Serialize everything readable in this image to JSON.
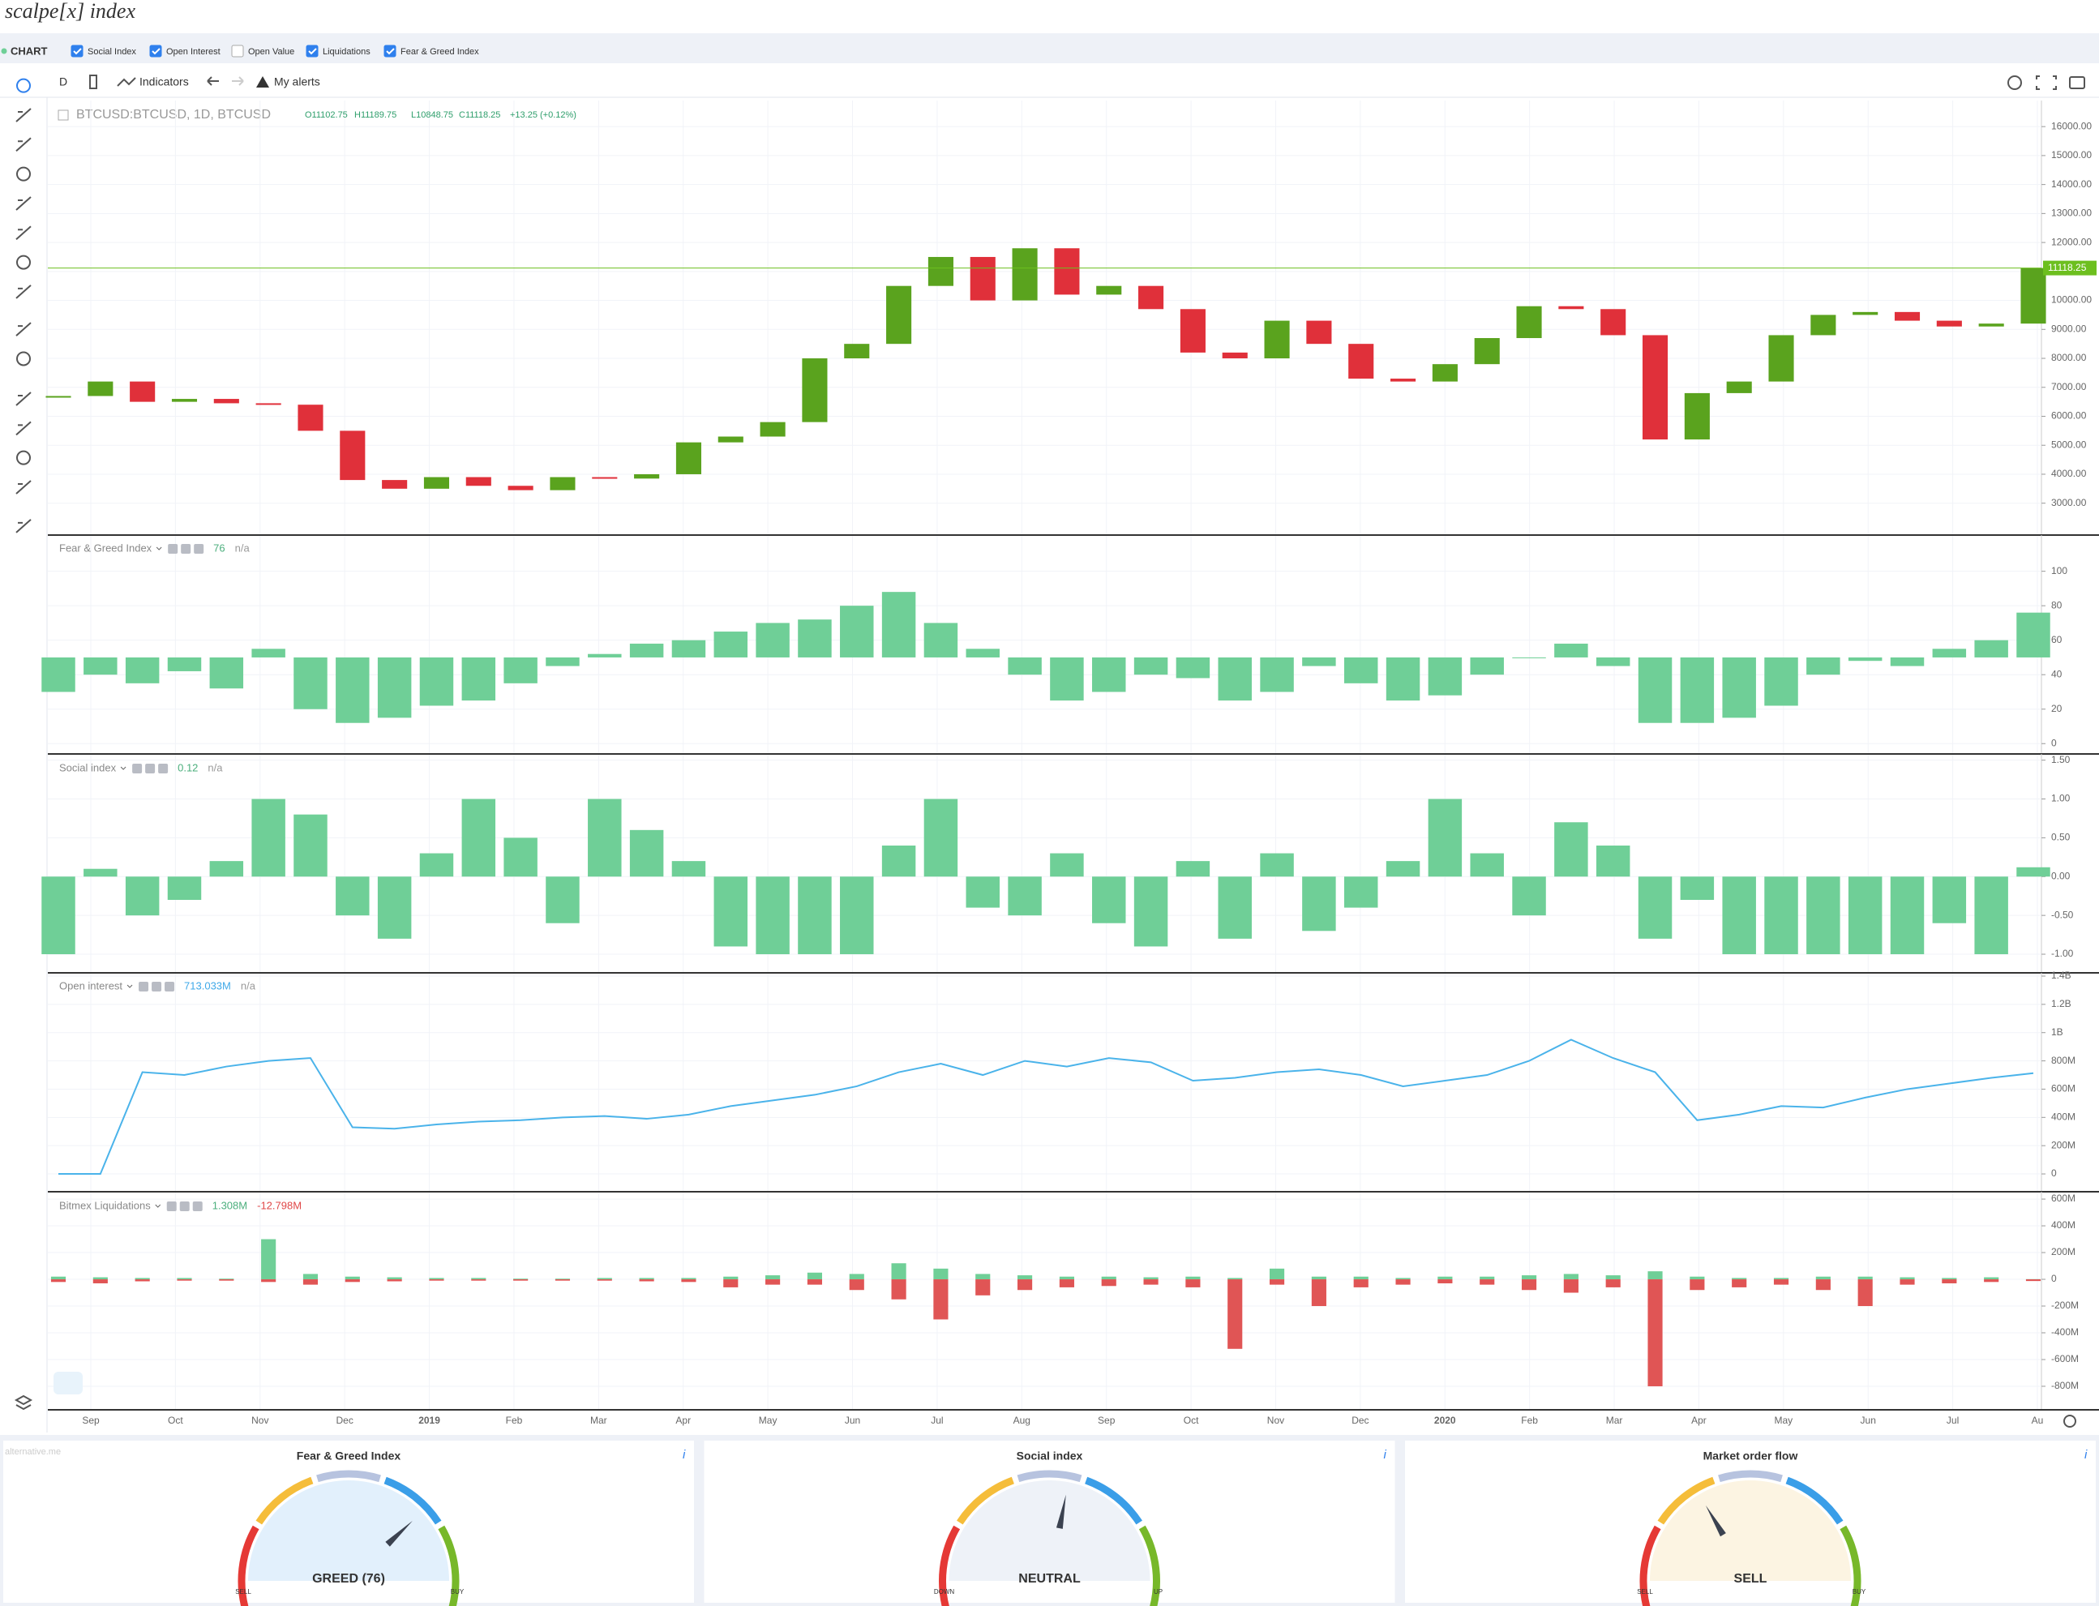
{
  "header": {
    "logo": "scalpe[x] index"
  },
  "filters": {
    "title": "CHART",
    "items": [
      {
        "label": "Social Index",
        "checked": true
      },
      {
        "label": "Open Interest",
        "checked": true
      },
      {
        "label": "Open Value",
        "checked": false
      },
      {
        "label": "Liquidations",
        "checked": true
      },
      {
        "label": "Fear & Greed Index",
        "checked": true
      }
    ]
  },
  "toolbar": {
    "interval": "D",
    "indicators": "Indicators",
    "alerts": "My alerts"
  },
  "chart_data": [
    {
      "type": "candle",
      "title": "BTCUSD:BTCUSD, 1D, BTCUSD",
      "quote": [
        "O11102.75",
        "H11189.75",
        "L10848.75",
        "C11118.25",
        "+13.25 (+0.12%)"
      ],
      "up_color": "#5aa31e",
      "down_color": "#e0303a",
      "last_price": 11118.25,
      "last_color": "#6dbf1f",
      "values": [
        6700,
        7200,
        6500,
        6600,
        6450,
        6400,
        5500,
        3800,
        3500,
        3900,
        3600,
        3450,
        3900,
        3850,
        4000,
        5100,
        5300,
        5800,
        8000,
        8500,
        10500,
        11500,
        10000,
        11800,
        10200,
        10500,
        9700,
        8200,
        8000,
        9300,
        8500,
        7300,
        7200,
        7800,
        8700,
        9800,
        9700,
        8800,
        5200,
        6800,
        7200,
        8800,
        9500,
        9600,
        9300,
        9100,
        9200,
        11118.25
      ],
      "ylim": [
        1900,
        16900
      ],
      "yticks": [
        {
          "value": 3000,
          "label": "3000.00"
        },
        {
          "value": 4000,
          "label": "4000.00"
        },
        {
          "value": 5000,
          "label": "5000.00"
        },
        {
          "value": 6000,
          "label": "6000.00"
        },
        {
          "value": 7000,
          "label": "7000.00"
        },
        {
          "value": 8000,
          "label": "8000.00"
        },
        {
          "value": 9000,
          "label": "9000.00"
        },
        {
          "value": 10000,
          "label": "10000.00"
        },
        {
          "value": 11000,
          "label": "11000.00"
        },
        {
          "value": 12000,
          "label": "12000.00"
        },
        {
          "value": 13000,
          "label": "13000.00"
        },
        {
          "value": 14000,
          "label": "14000.00"
        },
        {
          "value": 15000,
          "label": "15000.00"
        },
        {
          "value": 16000,
          "label": "16000.00"
        }
      ],
      "grid": true
    },
    {
      "type": "bar",
      "title": "Fear & Greed Index",
      "legend": [
        "76",
        "n/a"
      ],
      "legend_colors": [
        "#4caf7d",
        "#999"
      ],
      "color": "#6fcf97",
      "baseline": 50,
      "values": [
        30,
        40,
        35,
        42,
        32,
        55,
        20,
        12,
        15,
        22,
        25,
        35,
        45,
        52,
        58,
        60,
        65,
        70,
        72,
        80,
        88,
        70,
        55,
        40,
        25,
        30,
        40,
        38,
        25,
        30,
        45,
        35,
        25,
        28,
        40,
        50,
        58,
        45,
        12,
        12,
        15,
        22,
        40,
        48,
        45,
        55,
        60,
        76
      ],
      "ylim": [
        -6,
        121
      ],
      "yticks": [
        0,
        20,
        40,
        60,
        80,
        100
      ],
      "grid": true
    },
    {
      "type": "bar",
      "title": "Social index",
      "legend": [
        "0.12",
        "n/a"
      ],
      "legend_colors": [
        "#4caf7d",
        "#999"
      ],
      "color": "#6fcf97",
      "baseline": 0,
      "values": [
        -1,
        0.1,
        -0.5,
        -0.3,
        0.2,
        1,
        0.8,
        -0.5,
        -0.8,
        0.3,
        1,
        0.5,
        -0.6,
        1,
        0.6,
        0.2,
        -0.9,
        -1,
        -1,
        -1,
        0.4,
        1,
        -0.4,
        -0.5,
        0.3,
        -0.6,
        -0.9,
        0.2,
        -0.8,
        0.3,
        -0.7,
        -0.4,
        0.2,
        1,
        0.3,
        -0.5,
        0.7,
        0.4,
        -0.8,
        -0.3,
        -1,
        -1,
        -1,
        -1,
        -1,
        -0.6,
        -1,
        0.12
      ],
      "ylim": [
        -1.24,
        1.58
      ],
      "yticks": [
        {
          "value": -1,
          "label": "-1.00"
        },
        {
          "value": -0.5,
          "label": "-0.50"
        },
        {
          "value": 0,
          "label": "0.00"
        },
        {
          "value": 0.5,
          "label": "0.50"
        },
        {
          "value": 1,
          "label": "1.00"
        },
        {
          "value": 1.5,
          "label": "1.50"
        }
      ],
      "grid": true
    },
    {
      "type": "line",
      "title": "Open interest",
      "legend": [
        "713.033M",
        "n/a"
      ],
      "legend_colors": [
        "#3fa9e8",
        "#999"
      ],
      "color": "#4ab3ea",
      "values": [
        0,
        0,
        720,
        700,
        760,
        800,
        820,
        330,
        320,
        350,
        370,
        380,
        400,
        410,
        390,
        420,
        480,
        520,
        560,
        620,
        720,
        780,
        700,
        800,
        760,
        820,
        790,
        660,
        680,
        720,
        740,
        700,
        620,
        660,
        700,
        800,
        950,
        820,
        720,
        380,
        420,
        480,
        470,
        540,
        600,
        640,
        680,
        713.033
      ],
      "ylim": [
        -126,
        1423
      ],
      "yticks": [
        0,
        {
          "value": 200,
          "label": "200M"
        },
        {
          "value": 400,
          "label": "400M"
        },
        {
          "value": 600,
          "label": "600M"
        },
        {
          "value": 800,
          "label": "800M"
        },
        {
          "value": 1000,
          "label": "1B"
        },
        {
          "value": 1200,
          "label": "1.2B"
        },
        {
          "value": 1400,
          "label": "1.4B"
        }
      ],
      "grid": true
    },
    {
      "type": "bar",
      "title": "Bitmex Liquidations",
      "legend": [
        "1.308M",
        "-12.798M"
      ],
      "legend_colors": [
        "#4caf7d",
        "#e04848"
      ],
      "baseline": 0,
      "series": [
        {
          "color": "#6fcf97",
          "values": [
            20,
            15,
            10,
            10,
            5,
            300,
            40,
            20,
            15,
            10,
            10,
            5,
            5,
            10,
            10,
            10,
            20,
            30,
            50,
            40,
            120,
            80,
            40,
            30,
            20,
            20,
            15,
            20,
            10,
            80,
            20,
            20,
            10,
            20,
            20,
            30,
            40,
            30,
            60,
            20,
            10,
            10,
            20,
            20,
            15,
            10,
            15,
            1.308
          ]
        },
        {
          "color": "#e05555",
          "values": [
            -20,
            -30,
            -15,
            -10,
            -10,
            -20,
            -40,
            -20,
            -15,
            -10,
            -10,
            -10,
            -10,
            -10,
            -15,
            -20,
            -60,
            -40,
            -40,
            -80,
            -150,
            -300,
            -120,
            -80,
            -60,
            -50,
            -40,
            -60,
            -520,
            -40,
            -200,
            -60,
            -40,
            -30,
            -40,
            -80,
            -100,
            -60,
            -800,
            -80,
            -60,
            -40,
            -80,
            -200,
            -40,
            -30,
            -20,
            -12.798
          ]
        }
      ],
      "ylim": [
        -976,
        655
      ],
      "yticks": [
        {
          "value": -800,
          "label": "-800M"
        },
        {
          "value": -600,
          "label": "-600M"
        },
        {
          "value": -400,
          "label": "-400M"
        },
        {
          "value": -200,
          "label": "-200M"
        },
        0,
        {
          "value": 200,
          "label": "200M"
        },
        {
          "value": 400,
          "label": "400M"
        },
        {
          "value": 600,
          "label": "600M"
        }
      ],
      "grid": true
    }
  ],
  "time_axis": [
    "Sep",
    "Oct",
    "Nov",
    "Dec",
    "2019",
    "Feb",
    "Mar",
    "Apr",
    "May",
    "Jun",
    "Jul",
    "Aug",
    "Sep",
    "Oct",
    "Nov",
    "Dec",
    "2020",
    "Feb",
    "Mar",
    "Apr",
    "May",
    "Jun",
    "Jul",
    "Au"
  ],
  "gauges": [
    {
      "title": "Fear & Greed Index",
      "label": "GREED (76)",
      "value": 76,
      "range": [
        0,
        100
      ],
      "left": "SELL",
      "right": "BUY",
      "info": "i",
      "fill": "#e2f0fc"
    },
    {
      "title": "Social index",
      "label": "NEUTRAL",
      "value": 0.12,
      "range": [
        -1,
        1
      ],
      "left": "DOWN",
      "right": "UP",
      "info": "i",
      "fill": "#eef2f8"
    },
    {
      "title": "Market order flow",
      "label": "SELL",
      "value": 33,
      "range": [
        0,
        100
      ],
      "left": "SELL",
      "right": "BUY",
      "info": "i",
      "fill": "#fcf4e2"
    }
  ],
  "footer": {
    "source": "alternative.me"
  }
}
